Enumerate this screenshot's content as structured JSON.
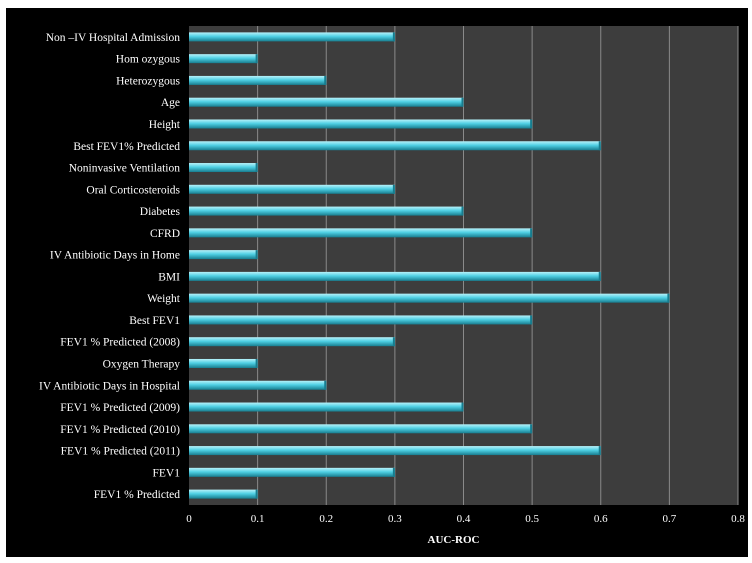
{
  "chart_data": {
    "type": "bar",
    "orientation": "horizontal",
    "title": "",
    "xlabel": "AUC-ROC",
    "ylabel": "",
    "xlim": [
      0,
      0.8
    ],
    "xticks": [
      "0",
      "0.1",
      "0.2",
      "0.3",
      "0.4",
      "0.5",
      "0.6",
      "0.7",
      "0.8"
    ],
    "grid": "vertical",
    "legend": "none",
    "colors": {
      "background": "#000000",
      "plot_area": "#3d3d3d",
      "gridline": "#8a8a8a",
      "bar_light": "#b8f2fa",
      "bar_mid": "#4fd0e4",
      "bar_dark": "#177d8f",
      "text": "#ffffff"
    },
    "categories": [
      "Non –IV Hospital Admission",
      "Hom ozygous",
      "Heterozygous",
      "Age",
      "Height",
      "Best FEV1% Predicted",
      "Noninvasive Ventilation",
      "Oral Corticosteroids",
      "Diabetes",
      "CFRD",
      "IV Antibiotic Days in Home",
      "BMI",
      "Weight",
      "Best FEV1",
      "FEV1 % Predicted (2008)",
      "Oxygen Therapy",
      "IV Antibiotic Days in Hospital",
      "FEV1 % Predicted (2009)",
      "FEV1 % Predicted (2010)",
      "FEV1 % Predicted (2011)",
      "FEV1",
      "FEV1 % Predicted"
    ],
    "values": [
      0.3,
      0.1,
      0.2,
      0.4,
      0.5,
      0.6,
      0.1,
      0.3,
      0.4,
      0.5,
      0.1,
      0.6,
      0.7,
      0.5,
      0.3,
      0.1,
      0.2,
      0.4,
      0.5,
      0.6,
      0.3,
      0.1
    ]
  }
}
